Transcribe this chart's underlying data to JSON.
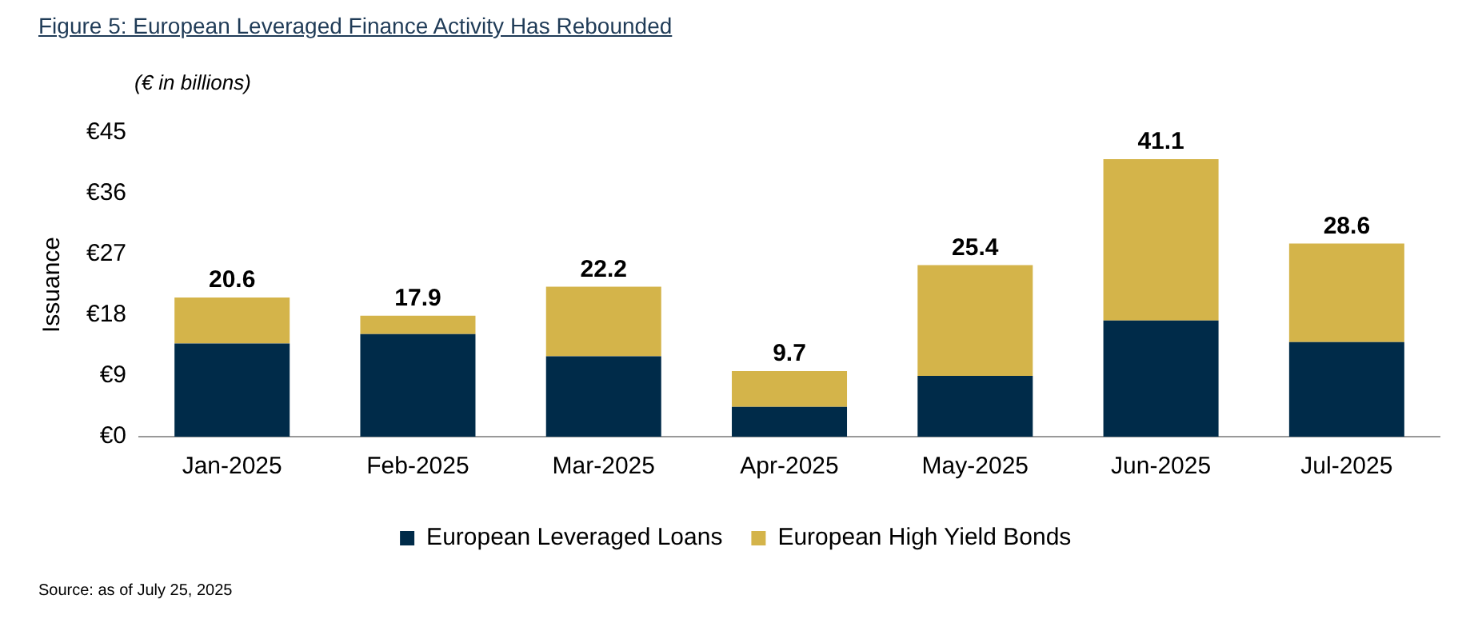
{
  "chart_data": {
    "type": "bar",
    "title": "Figure 5: European Leveraged Finance Activity Has Rebounded",
    "ylabel": "Issuance",
    "annotations": [
      "(€ in billions)",
      "Source: as of July 25, 2025"
    ],
    "categories": [
      "Jan-2025",
      "Feb-2025",
      "Mar-2025",
      "Apr-2025",
      "May-2025",
      "Jun-2025",
      "Jul-2025"
    ],
    "series": [
      {
        "name": "European Leveraged Loans",
        "color": "#002b49",
        "values": [
          13.8,
          15.2,
          11.9,
          4.4,
          9.0,
          17.2,
          14.0
        ]
      },
      {
        "name": "European High Yield Bonds",
        "color": "#d4b44a",
        "values": [
          6.8,
          2.7,
          10.3,
          5.3,
          16.4,
          23.9,
          14.6
        ]
      }
    ],
    "stacked": true,
    "totals": [
      "20.6",
      "17.9",
      "22.2",
      "9.7",
      "25.4",
      "41.1",
      "28.6"
    ],
    "ylim": [
      0,
      45
    ],
    "yticks": [
      {
        "value": 0,
        "label": "€0"
      },
      {
        "value": 9,
        "label": "€9"
      },
      {
        "value": 18,
        "label": "€18"
      },
      {
        "value": 27,
        "label": "€27"
      },
      {
        "value": 36,
        "label": "€36"
      },
      {
        "value": 45,
        "label": "€45"
      }
    ],
    "grid": false,
    "legend": "bottom"
  }
}
